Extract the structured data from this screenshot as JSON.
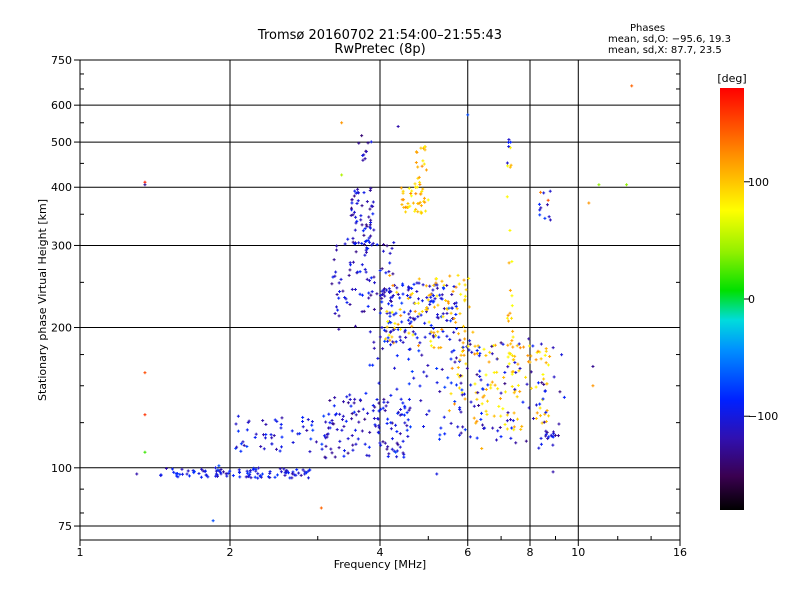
{
  "header": {
    "title_line1": "Tromsø 20160702 21:54:00–21:55:43",
    "title_line2": "RwPretec (8p)"
  },
  "phase_stats": {
    "heading": "Phases",
    "line_o": "mean, sd,O: −95.6, 19.3",
    "line_x": "mean, sd,X:  87.7, 23.5"
  },
  "colorbar": {
    "unit": "[deg]",
    "ticks": [
      "100",
      "0",
      "−100"
    ],
    "range": [
      -180,
      180
    ]
  },
  "chart_data": {
    "type": "scatter",
    "xlabel": "Frequency [MHz]",
    "ylabel": "Stationary phase Virtual Height [km]",
    "x_scale": "log",
    "y_scale": "log",
    "xlim": [
      1,
      16
    ],
    "ylim": [
      70,
      750
    ],
    "x_ticks": [
      "1",
      "2",
      "4",
      "6",
      "8",
      "10",
      "16"
    ],
    "y_ticks": [
      "75",
      "100",
      "200",
      "300",
      "400",
      "500",
      "600",
      "750"
    ],
    "grid": true,
    "color_by": "phase [deg]",
    "clusters": [
      {
        "x": [
          1.45,
          2.0
        ],
        "y": [
          95,
          100
        ],
        "phase": -100,
        "n": 45
      },
      {
        "x": [
          2.0,
          2.9
        ],
        "y": [
          95,
          100
        ],
        "phase": -100,
        "n": 60
      },
      {
        "x": [
          2.05,
          3.2
        ],
        "y": [
          108,
          130
        ],
        "phase": -100,
        "n": 60
      },
      {
        "x": [
          3.1,
          4.6
        ],
        "y": [
          105,
          145
        ],
        "phase": -110,
        "n": 120
      },
      {
        "x": [
          3.2,
          4.3
        ],
        "y": [
          195,
          310
        ],
        "phase": -110,
        "n": 90
      },
      {
        "x": [
          3.5,
          3.9
        ],
        "y": [
          300,
          400
        ],
        "phase": -110,
        "n": 60
      },
      {
        "x": [
          3.6,
          3.85
        ],
        "y": [
          450,
          520
        ],
        "phase": -120,
        "n": 10
      },
      {
        "x": [
          4.0,
          5.7
        ],
        "y": [
          190,
          250
        ],
        "phase": -100,
        "n": 130
      },
      {
        "x": [
          4.1,
          6.2
        ],
        "y": [
          180,
          260
        ],
        "phase": 100,
        "n": 90
      },
      {
        "x": [
          4.4,
          5.0
        ],
        "y": [
          350,
          400
        ],
        "phase": 100,
        "n": 40
      },
      {
        "x": [
          4.7,
          5.0
        ],
        "y": [
          400,
          490
        ],
        "phase": 100,
        "n": 20
      },
      {
        "x": [
          3.8,
          6.5
        ],
        "y": [
          115,
          190
        ],
        "phase": -100,
        "n": 100
      },
      {
        "x": [
          5.5,
          8.8
        ],
        "y": [
          120,
          185
        ],
        "phase": 100,
        "n": 120
      },
      {
        "x": [
          5.8,
          9.5
        ],
        "y": [
          110,
          190
        ],
        "phase": -110,
        "n": 70
      },
      {
        "x": [
          7.2,
          7.4
        ],
        "y": [
          150,
          500
        ],
        "phase": 95,
        "n": 25
      },
      {
        "x": [
          7.2,
          7.4
        ],
        "y": [
          440,
          510
        ],
        "phase": -110,
        "n": 5
      },
      {
        "x": [
          8.5,
          9.2
        ],
        "y": [
          116,
          120
        ],
        "phase": -110,
        "n": 12
      },
      {
        "x": [
          8.2,
          9.2
        ],
        "y": [
          340,
          400
        ],
        "phase": -100,
        "n": 10
      }
    ],
    "points": [
      {
        "x": 1.35,
        "y": 410,
        "phase": 170
      },
      {
        "x": 1.35,
        "y": 405,
        "phase": -130
      },
      {
        "x": 1.35,
        "y": 160,
        "phase": 150
      },
      {
        "x": 1.35,
        "y": 130,
        "phase": 160
      },
      {
        "x": 1.35,
        "y": 108,
        "phase": 20
      },
      {
        "x": 1.3,
        "y": 97,
        "phase": -120
      },
      {
        "x": 1.9,
        "y": 101,
        "phase": -70
      },
      {
        "x": 1.85,
        "y": 77,
        "phase": -70
      },
      {
        "x": 3.05,
        "y": 82,
        "phase": 140
      },
      {
        "x": 3.35,
        "y": 550,
        "phase": 120
      },
      {
        "x": 3.35,
        "y": 425,
        "phase": 50
      },
      {
        "x": 4.35,
        "y": 540,
        "phase": -120
      },
      {
        "x": 6.0,
        "y": 572,
        "phase": -70
      },
      {
        "x": 5.5,
        "y": 220,
        "phase": -60
      },
      {
        "x": 8.4,
        "y": 390,
        "phase": 130
      },
      {
        "x": 8.7,
        "y": 375,
        "phase": 150
      },
      {
        "x": 10.5,
        "y": 370,
        "phase": 120
      },
      {
        "x": 11.0,
        "y": 405,
        "phase": 40
      },
      {
        "x": 12.5,
        "y": 405,
        "phase": 40
      },
      {
        "x": 12.8,
        "y": 660,
        "phase": 140
      },
      {
        "x": 10.7,
        "y": 165,
        "phase": -130
      },
      {
        "x": 10.7,
        "y": 150,
        "phase": 120
      },
      {
        "x": 8.9,
        "y": 98,
        "phase": -120
      },
      {
        "x": 5.2,
        "y": 97,
        "phase": -100
      },
      {
        "x": 4.3,
        "y": 108,
        "phase": -70
      },
      {
        "x": 6.4,
        "y": 110,
        "phase": 110
      }
    ]
  }
}
